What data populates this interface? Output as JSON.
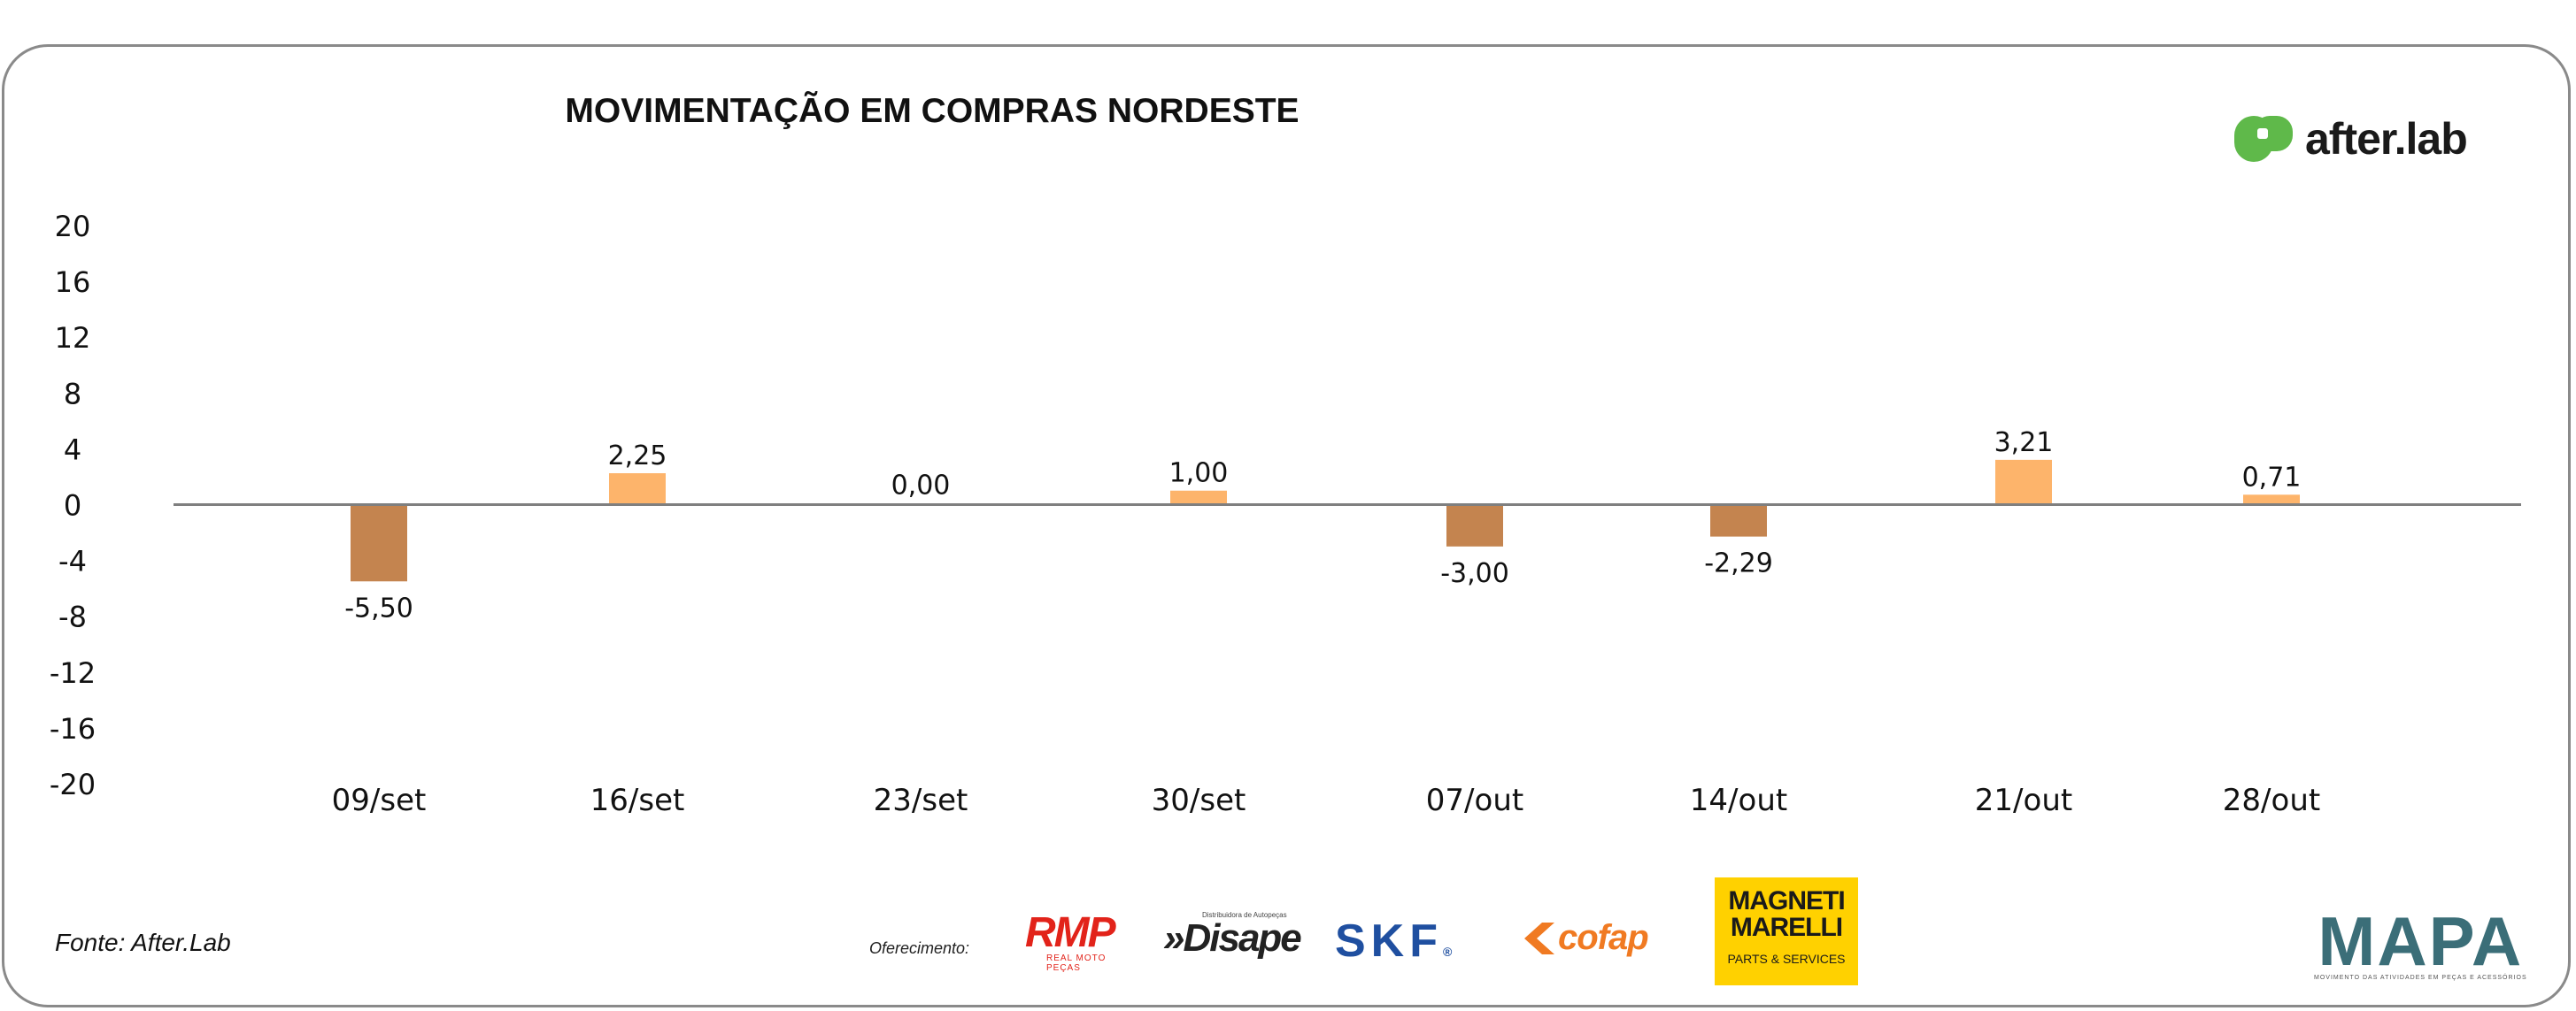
{
  "brand": {
    "name": "after.lab",
    "accent": "#5fb94a"
  },
  "source": "Fonte: After.Lab",
  "sponsors": {
    "label": "Oferecimento:",
    "rmp": {
      "name": "RMP",
      "sub": "REAL MOTO PEÇAS"
    },
    "disape": {
      "name": "»Disape",
      "sub": "Distribuidora de Autopeças"
    },
    "skf": {
      "name": "SKF",
      "mark": "®"
    },
    "cofap": {
      "name": "cofap"
    },
    "magneti": {
      "name": "MAGNETI MARELLI",
      "sub": "PARTS & SERVICES"
    },
    "mapa": {
      "name": "MAPA",
      "sub": "MOVIMENTO DAS ATIVIDADES EM PEÇAS E ACESSÓRIOS"
    }
  },
  "chart_data": {
    "type": "bar",
    "title": "MOVIMENTAÇÃO EM COMPRAS NORDESTE",
    "xlabel": "",
    "ylabel": "",
    "categories": [
      "09/set",
      "16/set",
      "23/set",
      "30/set",
      "07/out",
      "14/out",
      "21/out",
      "28/out"
    ],
    "values": [
      -5.5,
      2.25,
      0.0,
      1.0,
      -3.0,
      -2.29,
      3.21,
      0.71
    ],
    "data_labels": [
      "-5,50",
      "2,25",
      "0,00",
      "1,00",
      "-3,00",
      "-2,29",
      "3,21",
      "0,71"
    ],
    "ylim": [
      -20,
      20
    ],
    "yticks": [
      20,
      16,
      12,
      8,
      4,
      0,
      -4,
      -8,
      -12,
      -16,
      -20
    ],
    "grid": false,
    "legend": "none",
    "colors": {
      "positive": "#fdb46b",
      "negative": "#c4844f",
      "axis": "#7f7f7f"
    }
  }
}
